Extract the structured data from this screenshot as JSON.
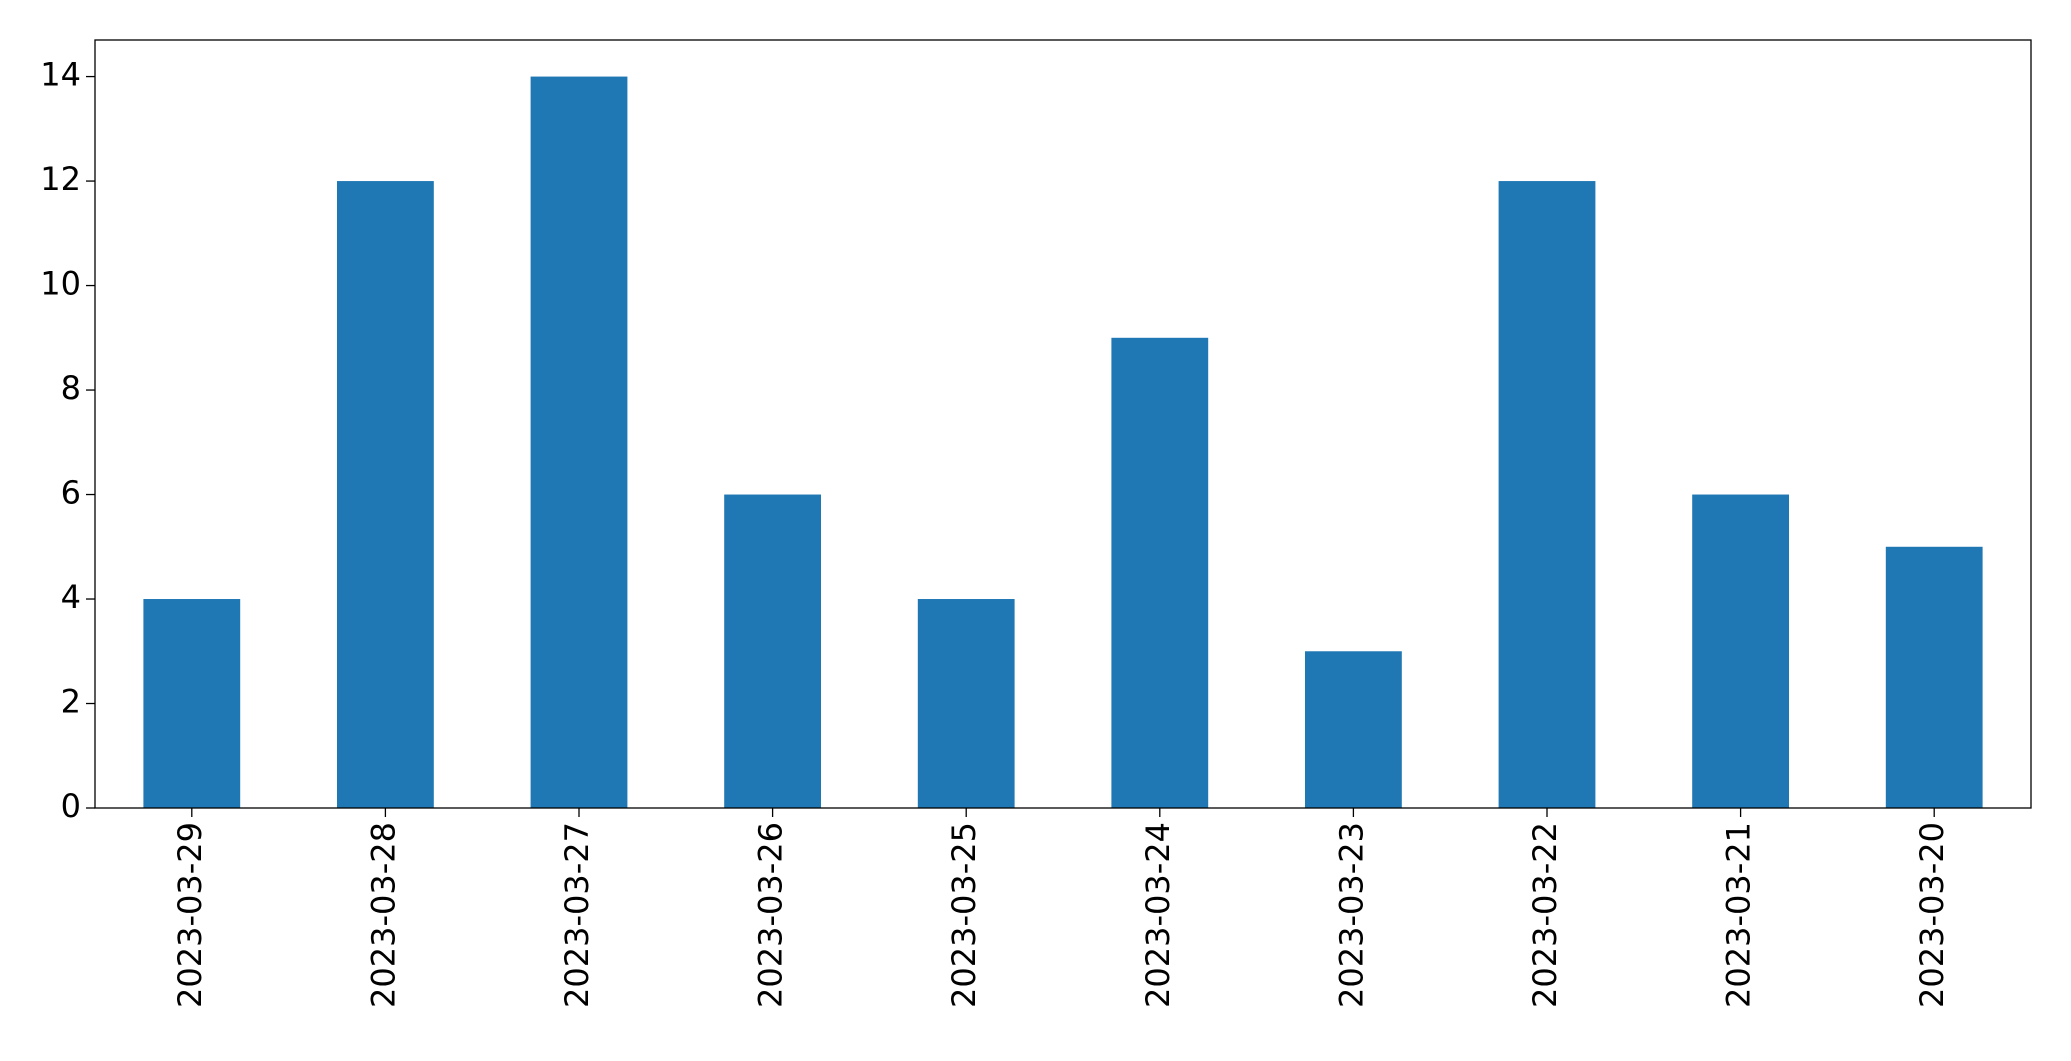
{
  "chart_data": {
    "type": "bar",
    "categories": [
      "2023-03-29",
      "2023-03-28",
      "2023-03-27",
      "2023-03-26",
      "2023-03-25",
      "2023-03-24",
      "2023-03-23",
      "2023-03-22",
      "2023-03-21",
      "2023-03-20"
    ],
    "values": [
      4,
      12,
      14,
      6,
      4,
      9,
      3,
      12,
      6,
      5
    ],
    "color": "#1f77b4",
    "ylim": [
      0,
      14.7
    ],
    "yticks": [
      0,
      2,
      4,
      6,
      8,
      10,
      12,
      14
    ],
    "grid": false
  }
}
